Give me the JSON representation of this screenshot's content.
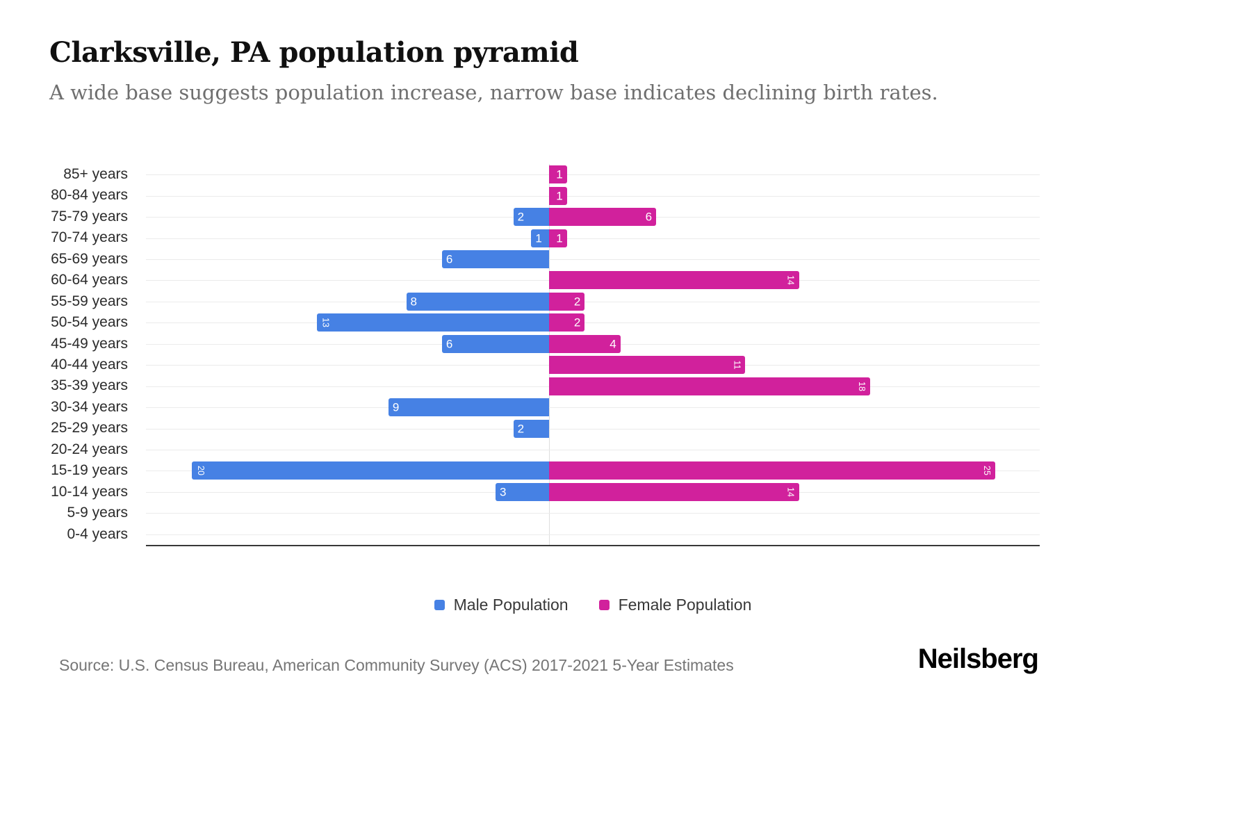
{
  "page": {
    "title": "Clarksville, PA population pyramid",
    "subtitle": "A wide base suggests population increase, narrow base indicates declining birth rates.",
    "source": "Source: U.S. Census Bureau, American Community Survey (ACS) 2017-2021 5-Year Estimates",
    "brand": "Neilsberg"
  },
  "colors": {
    "male": "#4681e4",
    "female": "#d1219c",
    "gridline": "#ebebeb",
    "axis_line": "#383838"
  },
  "legend": {
    "items": [
      {
        "label": "Male Population",
        "color": "#4681e4"
      },
      {
        "label": "Female Population",
        "color": "#d1219c"
      }
    ]
  },
  "chart_data": {
    "type": "bar",
    "subtype": "population-pyramid",
    "title": "Clarksville, PA population pyramid",
    "orientation": "horizontal",
    "categories": [
      "85+ years",
      "80-84 years",
      "75-79 years",
      "70-74 years",
      "65-69 years",
      "60-64 years",
      "55-59 years",
      "50-54 years",
      "45-49 years",
      "40-44 years",
      "35-39 years",
      "30-34 years",
      "25-29 years",
      "20-24 years",
      "15-19 years",
      "10-14 years",
      "5-9 years",
      "0-4 years"
    ],
    "series": [
      {
        "name": "Male Population",
        "side": "left",
        "color": "#4681e4",
        "values": [
          0,
          0,
          2,
          1,
          6,
          0,
          8,
          13,
          6,
          0,
          0,
          9,
          2,
          0,
          20,
          3,
          0,
          0
        ]
      },
      {
        "name": "Female Population",
        "side": "right",
        "color": "#d1219c",
        "values": [
          1,
          1,
          6,
          1,
          0,
          14,
          2,
          2,
          4,
          11,
          18,
          0,
          0,
          0,
          25,
          14,
          0,
          0
        ]
      }
    ],
    "value_labels": "inside bar at outer end; zero values show no bar and no label",
    "x_axis": {
      "tick_labels_visible": false,
      "left_max": 22,
      "right_max": 27
    },
    "grid": "horizontal line per category",
    "legend_position": "bottom-center"
  }
}
